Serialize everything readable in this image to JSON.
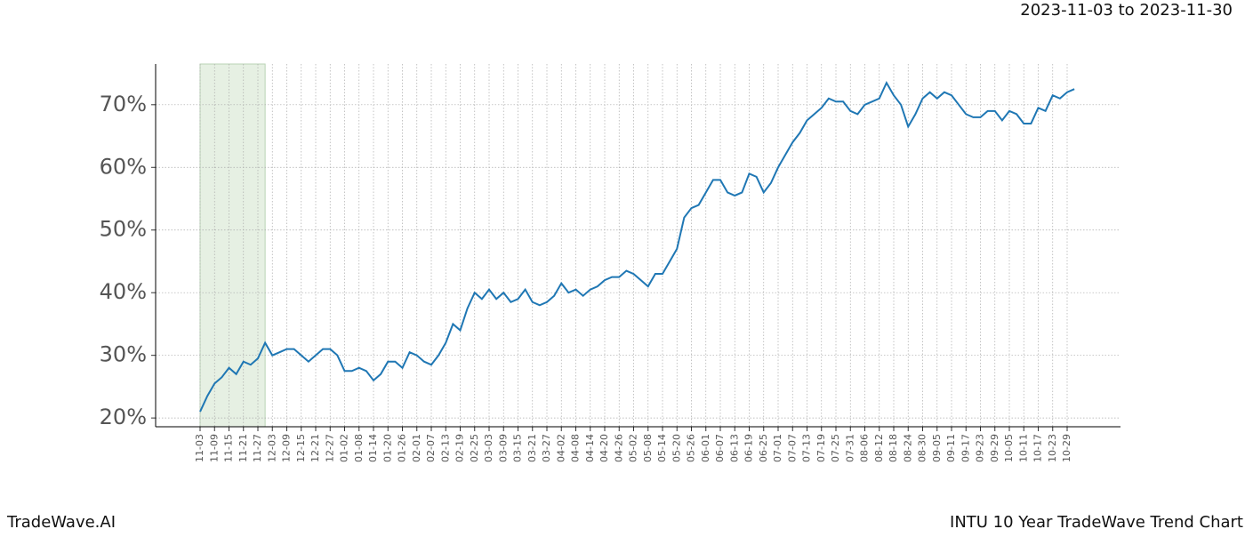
{
  "header": {
    "date_range": "2023-11-03 to 2023-11-30"
  },
  "footer": {
    "brand": "TradeWave.AI",
    "caption": "INTU 10 Year TradeWave Trend Chart"
  },
  "chart_data": {
    "type": "line",
    "categories": [
      "11-03",
      null,
      "11-09",
      null,
      "11-15",
      null,
      "11-21",
      null,
      "11-27",
      null,
      "12-03",
      null,
      "12-09",
      null,
      "12-15",
      null,
      "12-21",
      null,
      "12-27",
      null,
      "01-02",
      null,
      "01-08",
      null,
      "01-14",
      null,
      "01-20",
      null,
      "01-26",
      null,
      "02-01",
      null,
      "02-07",
      null,
      "02-13",
      null,
      "02-19",
      null,
      "02-25",
      null,
      "03-03",
      null,
      "03-09",
      null,
      "03-15",
      null,
      "03-21",
      null,
      "03-27",
      null,
      "04-02",
      null,
      "04-08",
      null,
      "04-14",
      null,
      "04-20",
      null,
      "04-26",
      null,
      "05-02",
      null,
      "05-08",
      null,
      "05-14",
      null,
      "05-20",
      null,
      "05-26",
      null,
      "06-01",
      null,
      "06-07",
      null,
      "06-13",
      null,
      "06-19",
      null,
      "06-25",
      null,
      "07-01",
      null,
      "07-07",
      null,
      "07-13",
      null,
      "07-19",
      null,
      "07-25",
      null,
      "07-31",
      null,
      "08-06",
      null,
      "08-12",
      null,
      "08-18",
      null,
      "08-24",
      null,
      "08-30",
      null,
      "09-05",
      null,
      "09-11",
      null,
      "09-17",
      null,
      "09-23",
      null,
      "09-29",
      null,
      "10-05",
      null,
      "10-11",
      null,
      "10-17",
      null,
      "10-23",
      null,
      "10-29",
      null
    ],
    "values": [
      21,
      23.5,
      25.5,
      26.5,
      28,
      27,
      29,
      28.5,
      29.5,
      32,
      30,
      30.5,
      31,
      31,
      30,
      29,
      30,
      31,
      31,
      30,
      27.5,
      27.5,
      28,
      27.5,
      26,
      27,
      29,
      29,
      28,
      30.5,
      30,
      29,
      28.5,
      30,
      32,
      35,
      34,
      37.5,
      40,
      39,
      40.5,
      39,
      40,
      38.5,
      39,
      40.5,
      38.5,
      38,
      38.5,
      39.5,
      41.5,
      40,
      40.5,
      39.5,
      40.5,
      41,
      42,
      42.5,
      42.5,
      43.5,
      43,
      42,
      41,
      43,
      43,
      45,
      47,
      52,
      53.5,
      54,
      56,
      58,
      58,
      56,
      55.5,
      56,
      59,
      58.5,
      56,
      57.5,
      60,
      62,
      64,
      65.5,
      67.5,
      68.5,
      69.5,
      71,
      70.5,
      70.5,
      69,
      68.5,
      70,
      70.5,
      71,
      73.5,
      71.5,
      70,
      66.5,
      68.5,
      71,
      72,
      71,
      72,
      71.5,
      70,
      68.5,
      68,
      68,
      69,
      69,
      67.5,
      69,
      68.5,
      67,
      67,
      69.5,
      69,
      71.5,
      71,
      72,
      72.5
    ],
    "color": "#1f77b4",
    "shade_color": "#e6f0e3",
    "ylim": [
      18.6,
      76.5
    ],
    "yticks": [
      {
        "value": 20,
        "label": "20%"
      },
      {
        "value": 30,
        "label": "30%"
      },
      {
        "value": 40,
        "label": "40%"
      },
      {
        "value": 50,
        "label": "50%"
      },
      {
        "value": 60,
        "label": "60%"
      },
      {
        "value": 70,
        "label": "70%"
      }
    ],
    "grid": true
  }
}
